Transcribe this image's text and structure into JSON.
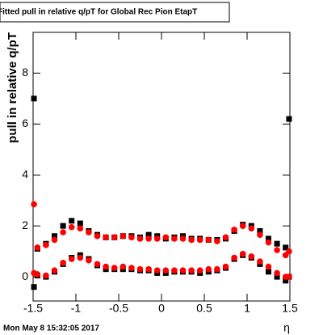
{
  "chart_data": {
    "type": "scatter",
    "title": "Fitted pull in relative q/pT  for Global Rec Pion EtapT",
    "ylabel": "pull in relative q/pT",
    "xlabel": "η",
    "footer": "Mon May  8 15:32:05 2017",
    "x": [
      -1.49,
      -1.45,
      -1.35,
      -1.25,
      -1.15,
      -1.05,
      -0.95,
      -0.85,
      -0.75,
      -0.65,
      -0.55,
      -0.45,
      -0.35,
      -0.25,
      -0.15,
      -0.05,
      0.05,
      0.15,
      0.25,
      0.35,
      0.45,
      0.55,
      0.65,
      0.75,
      0.85,
      0.95,
      1.05,
      1.15,
      1.25,
      1.35,
      1.45,
      1.49
    ],
    "series": [
      {
        "color": "#000000",
        "marker": "square",
        "values": [
          7.0,
          1.1,
          1.3,
          1.6,
          2.0,
          2.2,
          2.1,
          1.8,
          1.65,
          1.55,
          1.55,
          1.6,
          1.6,
          1.55,
          1.65,
          1.6,
          1.5,
          1.55,
          1.6,
          1.5,
          1.5,
          1.45,
          1.45,
          1.5,
          1.8,
          2.05,
          2.0,
          1.8,
          1.5,
          1.3,
          1.15,
          6.2
        ]
      },
      {
        "color": "#ff0000",
        "marker": "circle",
        "values": [
          2.85,
          1.15,
          1.25,
          1.45,
          1.75,
          1.95,
          1.9,
          1.75,
          1.6,
          1.55,
          1.55,
          1.6,
          1.55,
          1.5,
          1.5,
          1.5,
          1.55,
          1.5,
          1.5,
          1.45,
          1.45,
          1.45,
          1.4,
          1.55,
          1.85,
          2.0,
          1.9,
          1.65,
          1.35,
          1.05,
          0.85,
          1.0
        ]
      },
      {
        "color": "#000000",
        "marker": "square",
        "values": [
          -0.4,
          0.05,
          0.0,
          0.2,
          0.5,
          0.75,
          0.85,
          0.7,
          0.45,
          0.3,
          0.3,
          0.3,
          0.3,
          0.25,
          0.25,
          0.15,
          0.15,
          0.2,
          0.2,
          0.2,
          0.15,
          0.2,
          0.25,
          0.35,
          0.7,
          0.85,
          0.75,
          0.5,
          0.2,
          0.0,
          -0.15,
          0.0
        ]
      },
      {
        "color": "#ff0000",
        "marker": "circle",
        "values": [
          0.15,
          0.1,
          0.05,
          0.25,
          0.55,
          0.7,
          0.75,
          0.65,
          0.5,
          0.4,
          0.35,
          0.4,
          0.35,
          0.3,
          0.3,
          0.25,
          0.25,
          0.25,
          0.25,
          0.25,
          0.25,
          0.3,
          0.3,
          0.4,
          0.75,
          0.9,
          0.8,
          0.6,
          0.4,
          0.15,
          0.0,
          0.0
        ]
      }
    ],
    "xlim": [
      -1.5,
      1.5
    ],
    "ylim": [
      -0.95,
      9.6
    ],
    "xticks": [
      -1.5,
      -1,
      -0.5,
      0,
      0.5,
      1,
      1.5
    ],
    "yticks": [
      0,
      2,
      4,
      6,
      8
    ]
  }
}
